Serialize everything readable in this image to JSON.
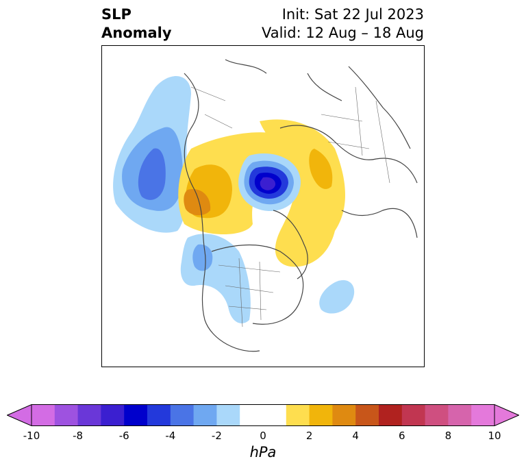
{
  "title": {
    "left_line1": "SLP",
    "left_line2": "Anomaly",
    "right_line1": "Init: Sat 22 Jul 2023",
    "right_line2": "Valid: 12 Aug – 18 Aug"
  },
  "map": {
    "projection": "north-polar-stereographic",
    "field": "sea level pressure anomaly",
    "features": [
      {
        "name": "pacific-low-center",
        "sign": "negative",
        "peak_hpa": -5
      },
      {
        "name": "arctic-low-center",
        "sign": "negative",
        "peak_hpa": -9
      },
      {
        "name": "siberia-high",
        "sign": "positive",
        "peak_hpa": 4
      },
      {
        "name": "greenland-high",
        "sign": "positive",
        "peak_hpa": 2
      },
      {
        "name": "western-us-low",
        "sign": "negative",
        "peak_hpa": -3
      },
      {
        "name": "atlantic-low",
        "sign": "negative",
        "peak_hpa": -2
      }
    ]
  },
  "colorbar": {
    "unit": "hPa",
    "extend": "both",
    "ticks": [
      "-10",
      "-8",
      "-6",
      "-4",
      "-2",
      "0",
      "2",
      "4",
      "6",
      "8",
      "10"
    ],
    "colors": [
      "#d36ce4",
      "#9e52e0",
      "#6a37d8",
      "#3b1fd0",
      "#0000cc",
      "#2339db",
      "#4a74e6",
      "#6fa8f1",
      "#aad8fa",
      "#ffffff",
      "#ffffff",
      "#fede4f",
      "#f1b50b",
      "#df8a11",
      "#c8561a",
      "#b0221f",
      "#c13651",
      "#cf4f80",
      "#d664ac",
      "#e479db"
    ]
  }
}
